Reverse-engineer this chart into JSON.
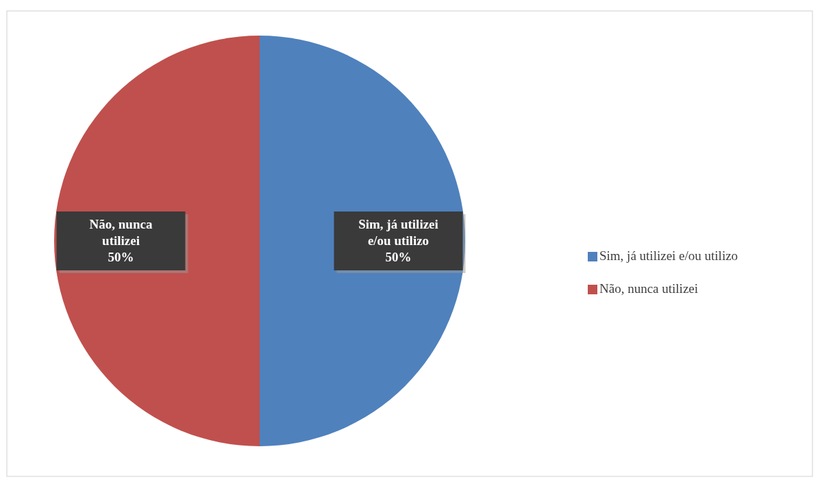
{
  "chart_data": {
    "type": "pie",
    "categories": [
      "Sim, já utilizei e/ou utilizo",
      "Não, nunca utilizei"
    ],
    "values": [
      50,
      50
    ],
    "colors": [
      "#4f81bd",
      "#c0504d"
    ],
    "value_labels": [
      "50%",
      "50%"
    ],
    "legend": "right"
  }
}
